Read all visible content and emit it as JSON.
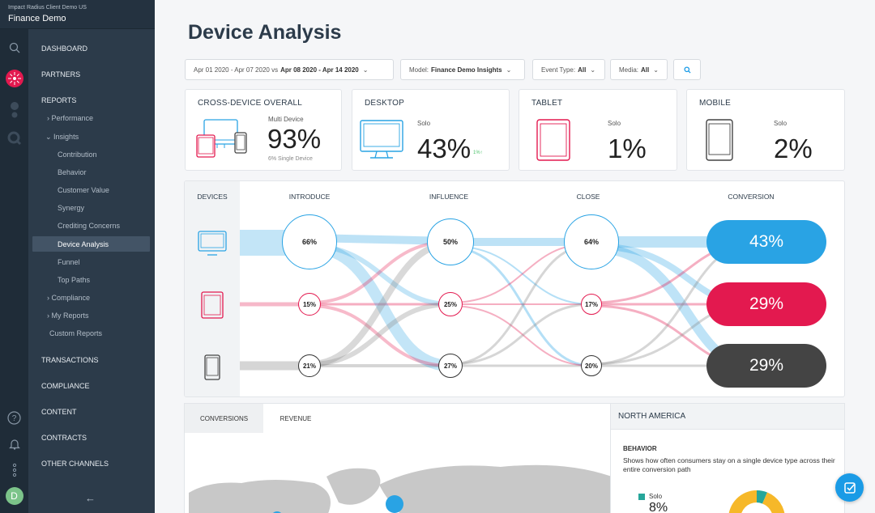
{
  "account": {
    "subtitle": "Impact Radius Client Demo US",
    "name": "Finance Demo"
  },
  "nav": {
    "dashboard": "DASHBOARD",
    "partners": "PARTNERS",
    "reports": "REPORTS",
    "performance": "Performance",
    "insights": "Insights",
    "insights_items": [
      "Contribution",
      "Behavior",
      "Customer Value",
      "Synergy",
      "Crediting Concerns",
      "Device Analysis",
      "Funnel",
      "Top Paths"
    ],
    "compliance_sub": "Compliance",
    "my_reports": "My Reports",
    "custom_reports": "Custom Reports",
    "transactions": "TRANSACTIONS",
    "compliance": "COMPLIANCE",
    "content": "CONTENT",
    "contracts": "CONTRACTS",
    "other_channels": "OTHER CHANNELS",
    "collapse_glyph": "←"
  },
  "user": {
    "initial": "D"
  },
  "page": {
    "title": "Device Analysis"
  },
  "filters": {
    "date_range": "Apr 01 2020 - Apr 07 2020",
    "vs": "vs",
    "compare_range": "Apr 08 2020 - Apr 14 2020",
    "model_label": "Model:",
    "model_value": "Finance Demo Insights",
    "event_label": "Event Type:",
    "event_value": "All",
    "media_label": "Media:",
    "media_value": "All"
  },
  "cards": {
    "cross": {
      "title": "CROSS-DEVICE OVERALL",
      "label": "Multi Device",
      "value": "93%",
      "sub": "6% Single Device"
    },
    "desktop": {
      "title": "DESKTOP",
      "label": "Solo",
      "value": "43%",
      "delta": "1%"
    },
    "tablet": {
      "title": "TABLET",
      "label": "Solo",
      "value": "1%"
    },
    "mobile": {
      "title": "MOBILE",
      "label": "Solo",
      "value": "2%"
    }
  },
  "flow": {
    "headers": {
      "devices": "DEVICES",
      "introduce": "INTRODUCE",
      "influence": "INFLUENCE",
      "close": "CLOSE",
      "conversion": "CONVERSION"
    },
    "introduce": {
      "desktop": "66%",
      "tablet": "15%",
      "mobile": "21%"
    },
    "influence": {
      "desktop": "50%",
      "tablet": "25%",
      "mobile": "27%"
    },
    "close": {
      "desktop": "64%",
      "tablet": "17%",
      "mobile": "20%"
    },
    "conversion": {
      "desktop": "43%",
      "tablet": "29%",
      "mobile": "29%"
    }
  },
  "bottom": {
    "tab_conversions": "CONVERSIONS",
    "tab_revenue": "REVENUE"
  },
  "region": {
    "title": "NORTH AMERICA",
    "behavior_title": "BEHAVIOR",
    "behavior_desc": "Shows how often consumers stay on a single device type across their entire conversion path",
    "legend_solo": "Solo",
    "solo_value": "8%"
  },
  "colors": {
    "desktop": "#29a3e4",
    "tablet": "#e3194f",
    "mobile": "#444444",
    "accent": "#1a9be6"
  }
}
